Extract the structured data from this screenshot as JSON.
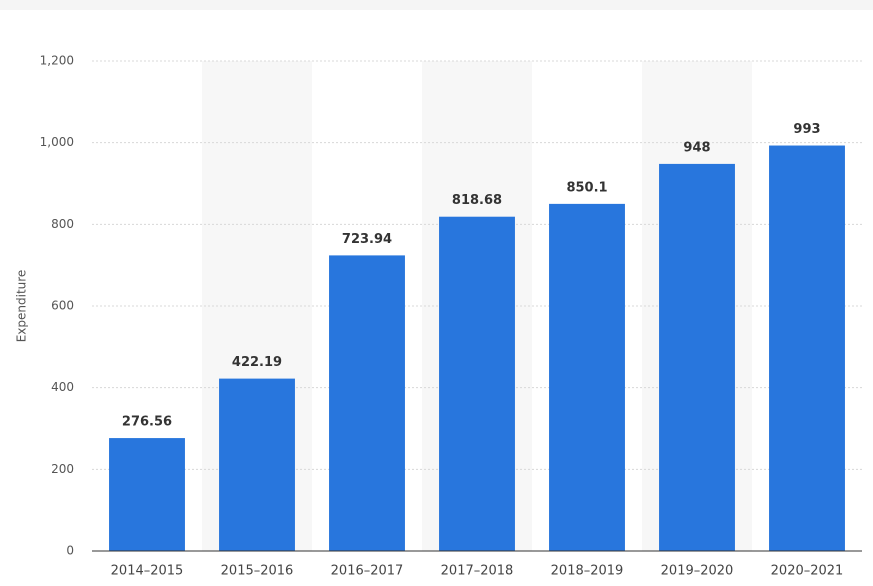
{
  "chart_data": {
    "type": "bar",
    "y_label": "Expenditure",
    "categories": [
      "2014–2015",
      "2015–2016",
      "2016–2017",
      "2017–2018",
      "2018–2019",
      "2019–2020",
      "2020–2021"
    ],
    "values": [
      276.56,
      422.19,
      723.94,
      818.68,
      850.1,
      948,
      993
    ],
    "color": "#2876dd",
    "ylim": [
      0,
      1200
    ],
    "yticks": [
      0,
      200,
      400,
      600,
      800,
      {
        "value": 1000,
        "label": "1,000"
      },
      {
        "value": 1200,
        "label": "1,200"
      }
    ],
    "grid": true
  }
}
